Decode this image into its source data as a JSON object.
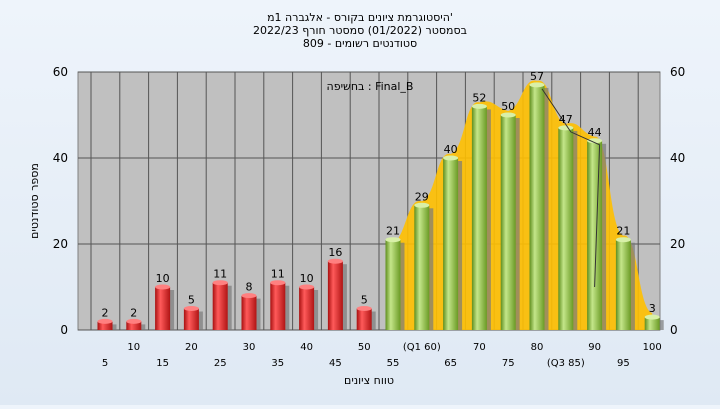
{
  "chart_data": {
    "type": "bar",
    "title_lines": [
      "היסטוגרמת ציונים בקורס - אלגברה 1מ'",
      "בסמסטר  (01/2022)  סמסטר חורף 2022/23",
      "809 - סטודנטים רשומים"
    ],
    "annotation": "בחשיפה : Final_B",
    "xlabel": "טווח ציונים",
    "ylabel": "מספר סטודנטים",
    "ylim": [
      0,
      60
    ],
    "yticks": [
      0,
      20,
      40,
      60
    ],
    "grid": true,
    "categories": [
      "5",
      "10",
      "15",
      "20",
      "25",
      "30",
      "35",
      "40",
      "45",
      "50",
      "55",
      "(Q1 60)",
      "65",
      "70",
      "75",
      "80",
      "(Q3 85)",
      "90",
      "95",
      "100"
    ],
    "values": [
      2,
      2,
      10,
      5,
      11,
      8,
      11,
      10,
      16,
      5,
      21,
      29,
      40,
      52,
      50,
      57,
      47,
      44,
      21,
      3
    ],
    "colors": {
      "fail": "#e02020",
      "pass": "#8cc43c",
      "curve": "#ffc000",
      "plot_bg": "#c0c0c0",
      "curve_line": "#333333"
    },
    "fail_count": 10
  }
}
